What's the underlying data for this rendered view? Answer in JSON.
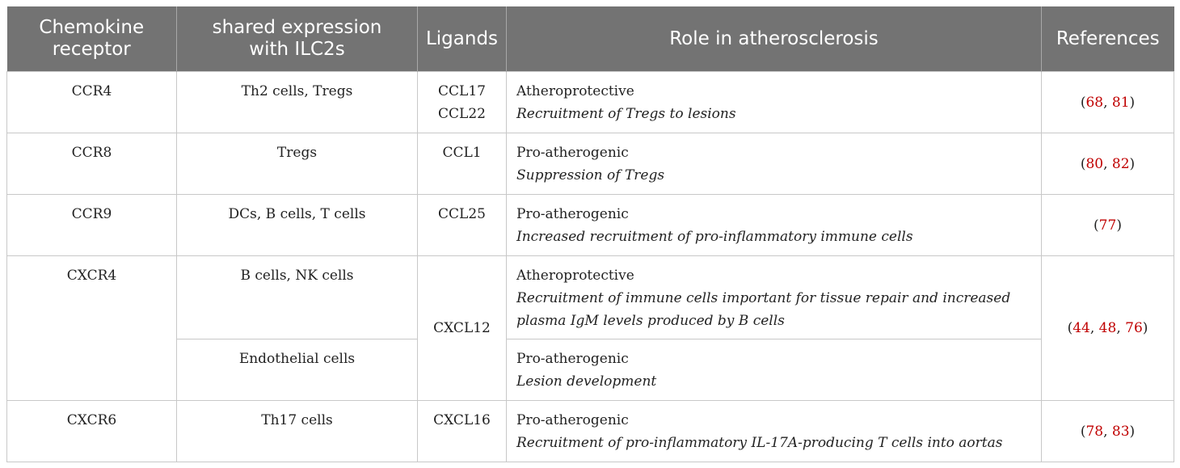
{
  "table": {
    "headers": [
      {
        "line1": "Chemokine",
        "line2": "receptor"
      },
      {
        "line1": "shared expression",
        "line2": "with ILC2s"
      },
      {
        "line1": "Ligands",
        "line2": ""
      },
      {
        "line1": "Role in atherosclerosis",
        "line2": ""
      },
      {
        "line1": "References",
        "line2": ""
      }
    ],
    "rows": [
      {
        "receptor": "CCR4",
        "shared": "Th2 cells, Tregs",
        "ligands": [
          "CCL17",
          "CCL22"
        ],
        "role": "Atheroprotective",
        "role_desc": "Recruitment of Tregs to lesions",
        "refs": [
          "68",
          "81"
        ]
      },
      {
        "receptor": "CCR8",
        "shared": "Tregs",
        "ligands": [
          "CCL1"
        ],
        "role": "Pro-atherogenic",
        "role_desc": "Suppression of Tregs",
        "refs": [
          "80",
          "82"
        ]
      },
      {
        "receptor": "CCR9",
        "shared": "DCs, B cells, T cells",
        "ligands": [
          "CCL25"
        ],
        "role": "Pro-atherogenic",
        "role_desc": "Increased recruitment of pro-inflammatory immune cells",
        "refs": [
          "77"
        ]
      },
      {
        "receptor": "CXCR4",
        "shared": "B cells, NK cells",
        "ligands": [
          "CXCL12"
        ],
        "role": "Atheroprotective",
        "role_desc_1": "Recruitment of immune cells important for tissue repair and increased",
        "role_desc_2": "plasma IgM levels produced by B cells",
        "refs": [
          "44",
          "48",
          "76"
        ],
        "sub": {
          "shared": "Endothelial cells",
          "role": "Pro-atherogenic",
          "role_desc": "Lesion development"
        }
      },
      {
        "receptor": "CXCR6",
        "shared": "Th17 cells",
        "ligands": [
          "CXCL16"
        ],
        "role": "Pro-atherogenic",
        "role_desc": "Recruitment of pro-inflammatory IL-17A-producing T cells into aortas",
        "refs": [
          "78",
          "83"
        ]
      }
    ],
    "ref_open": "(",
    "ref_sep": ", ",
    "ref_close": ")"
  },
  "colors": {
    "header_bg": "#737373",
    "header_text": "#ffffff",
    "ref_link": "#c00000",
    "border": "#c8c8c8"
  }
}
